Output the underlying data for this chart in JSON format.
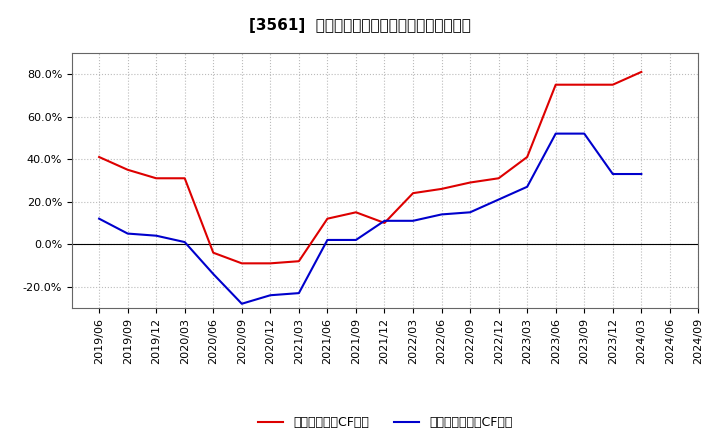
{
  "title": "[3561]  流動負債キャッシュフロー比率の推移",
  "x_labels": [
    "2019/06",
    "2019/09",
    "2019/12",
    "2020/03",
    "2020/06",
    "2020/09",
    "2020/12",
    "2021/03",
    "2021/06",
    "2021/09",
    "2021/12",
    "2022/03",
    "2022/06",
    "2022/09",
    "2022/12",
    "2023/03",
    "2023/06",
    "2023/09",
    "2023/12",
    "2024/03",
    "2024/06",
    "2024/09"
  ],
  "series_operating": [
    0.41,
    0.35,
    0.31,
    0.31,
    -0.04,
    -0.09,
    -0.09,
    -0.08,
    0.12,
    0.15,
    0.1,
    0.24,
    0.26,
    0.29,
    0.31,
    0.41,
    0.75,
    0.75,
    0.75,
    0.81,
    null,
    null
  ],
  "series_free": [
    0.12,
    0.05,
    0.04,
    0.01,
    -0.14,
    -0.28,
    -0.24,
    -0.23,
    0.02,
    0.02,
    0.11,
    0.11,
    0.14,
    0.15,
    0.21,
    0.27,
    0.52,
    0.52,
    0.33,
    0.33,
    null,
    null
  ],
  "operating_color": "#dd0000",
  "free_color": "#0000cc",
  "background_color": "#ffffff",
  "grid_color": "#bbbbbb",
  "ylim": [
    -0.3,
    0.9
  ],
  "yticks": [
    -0.2,
    0.0,
    0.2,
    0.4,
    0.6,
    0.8
  ],
  "legend_operating": "流動負債営業CF比率",
  "legend_free": "流動負債フリーCF比率",
  "title_fontsize": 11,
  "tick_fontsize": 8,
  "legend_fontsize": 9
}
